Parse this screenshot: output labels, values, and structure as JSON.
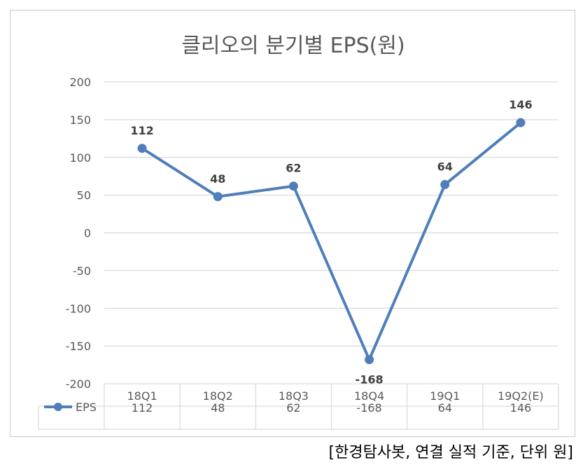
{
  "source_note": "[한경탐사봇, 연결 실적 기준, 단위 원]",
  "chart_data": {
    "type": "line",
    "title": "클리오의 분기별 EPS(원)",
    "categories": [
      "18Q1",
      "18Q2",
      "18Q3",
      "18Q4",
      "19Q1",
      "19Q2(E)"
    ],
    "series": [
      {
        "name": "EPS",
        "values": [
          112,
          48,
          62,
          -168,
          64,
          146
        ]
      }
    ],
    "y_ticks": [
      200,
      150,
      100,
      50,
      0,
      -50,
      -100,
      -150,
      -200
    ],
    "ylim": [
      -200,
      200
    ],
    "grid": true,
    "data_table": true,
    "colors": {
      "series": "#4f7ebb",
      "grid": "#d9d9d9"
    }
  }
}
